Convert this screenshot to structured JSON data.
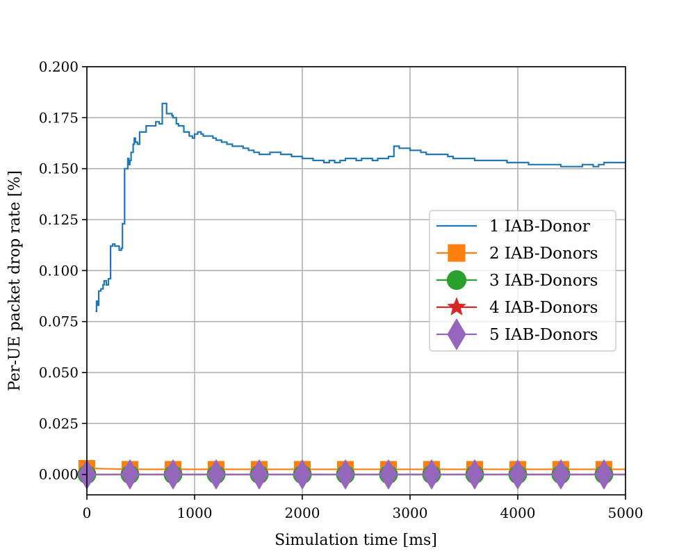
{
  "chart_data": {
    "type": "line",
    "xlabel": "Simulation time [ms]",
    "ylabel": "Per-UE packet drop rate [%]",
    "xlim": [
      0,
      5000
    ],
    "ylim": [
      -0.01,
      0.2
    ],
    "x_ticks": [
      0,
      1000,
      2000,
      3000,
      4000,
      5000
    ],
    "x_tick_labels": [
      "0",
      "1000",
      "2000",
      "3000",
      "4000",
      "5000"
    ],
    "y_ticks": [
      0.0,
      0.025,
      0.05,
      0.075,
      0.1,
      0.125,
      0.15,
      0.175,
      0.2
    ],
    "y_tick_labels": [
      "0.000",
      "0.025",
      "0.050",
      "0.075",
      "0.100",
      "0.125",
      "0.150",
      "0.175",
      "0.200"
    ],
    "grid": true,
    "legend_position": "center-right",
    "series": [
      {
        "name": "1 IAB-Donor",
        "color": "#1f77b4",
        "marker": "none",
        "step": true,
        "x": [
          80,
          90,
          100,
          110,
          130,
          150,
          160,
          180,
          200,
          220,
          240,
          260,
          300,
          320,
          330,
          350,
          380,
          390,
          400,
          410,
          430,
          440,
          450,
          470,
          490,
          520,
          550,
          600,
          640,
          670,
          700,
          740,
          760,
          790,
          800,
          830,
          850,
          900,
          950,
          980,
          1000,
          1030,
          1060,
          1080,
          1120,
          1170,
          1200,
          1250,
          1300,
          1350,
          1400,
          1450,
          1500,
          1550,
          1600,
          1650,
          1700,
          1750,
          1800,
          1850,
          1900,
          1950,
          2000,
          2050,
          2100,
          2150,
          2200,
          2250,
          2300,
          2350,
          2400,
          2450,
          2500,
          2550,
          2600,
          2650,
          2700,
          2750,
          2800,
          2850,
          2900,
          2950,
          3000,
          3060,
          3100,
          3150,
          3200,
          3250,
          3300,
          3350,
          3400,
          3500,
          3600,
          3700,
          3800,
          3900,
          4000,
          4100,
          4200,
          4300,
          4400,
          4500,
          4600,
          4700,
          4750,
          4800,
          4850,
          4900,
          4950,
          5000
        ],
        "y": [
          0.08,
          0.085,
          0.083,
          0.09,
          0.091,
          0.093,
          0.095,
          0.093,
          0.096,
          0.112,
          0.113,
          0.112,
          0.11,
          0.111,
          0.123,
          0.15,
          0.155,
          0.152,
          0.154,
          0.158,
          0.162,
          0.165,
          0.163,
          0.162,
          0.168,
          0.168,
          0.171,
          0.171,
          0.173,
          0.172,
          0.182,
          0.177,
          0.177,
          0.176,
          0.175,
          0.172,
          0.171,
          0.168,
          0.166,
          0.165,
          0.167,
          0.168,
          0.167,
          0.166,
          0.166,
          0.165,
          0.164,
          0.163,
          0.162,
          0.161,
          0.161,
          0.16,
          0.159,
          0.158,
          0.157,
          0.157,
          0.158,
          0.158,
          0.157,
          0.157,
          0.156,
          0.156,
          0.155,
          0.155,
          0.154,
          0.154,
          0.153,
          0.154,
          0.153,
          0.154,
          0.155,
          0.155,
          0.154,
          0.155,
          0.155,
          0.154,
          0.155,
          0.155,
          0.156,
          0.161,
          0.16,
          0.16,
          0.159,
          0.159,
          0.158,
          0.157,
          0.157,
          0.157,
          0.157,
          0.156,
          0.155,
          0.155,
          0.154,
          0.154,
          0.154,
          0.153,
          0.153,
          0.152,
          0.152,
          0.152,
          0.151,
          0.151,
          0.152,
          0.151,
          0.152,
          0.153,
          0.153,
          0.153,
          0.153,
          0.153
        ]
      },
      {
        "name": "2 IAB-Donors",
        "color": "#ff7f0e",
        "marker": "square",
        "x": [
          0,
          400,
          800,
          1200,
          1600,
          2000,
          2400,
          2800,
          3200,
          3600,
          4000,
          4400,
          4800,
          5000
        ],
        "y": [
          0.003,
          0.0025,
          0.0025,
          0.0025,
          0.0025,
          0.0025,
          0.0025,
          0.0025,
          0.0025,
          0.0025,
          0.0025,
          0.0025,
          0.0025,
          0.0025
        ],
        "marker_x": [
          0,
          400,
          800,
          1200,
          1600,
          2000,
          2400,
          2800,
          3200,
          3600,
          4000,
          4400,
          4800
        ]
      },
      {
        "name": "3 IAB-Donors",
        "color": "#2ca02c",
        "marker": "circle",
        "x": [
          0,
          5000
        ],
        "y": [
          0.0,
          0.0
        ],
        "marker_x": [
          0,
          400,
          800,
          1200,
          1600,
          2000,
          2400,
          2800,
          3200,
          3600,
          4000,
          4400,
          4800
        ]
      },
      {
        "name": "4 IAB-Donors",
        "color": "#d62728",
        "marker": "star",
        "x": [
          0,
          5000
        ],
        "y": [
          0.0,
          0.0
        ],
        "marker_x": [
          0,
          400,
          800,
          1200,
          1600,
          2000,
          2400,
          2800,
          3200,
          3600,
          4000,
          4400,
          4800
        ]
      },
      {
        "name": "5 IAB-Donors",
        "color": "#9467bd",
        "marker": "diamond",
        "x": [
          0,
          5000
        ],
        "y": [
          0.0,
          0.0
        ],
        "marker_x": [
          0,
          400,
          800,
          1200,
          1600,
          2000,
          2400,
          2800,
          3200,
          3600,
          4000,
          4400,
          4800
        ]
      }
    ]
  }
}
